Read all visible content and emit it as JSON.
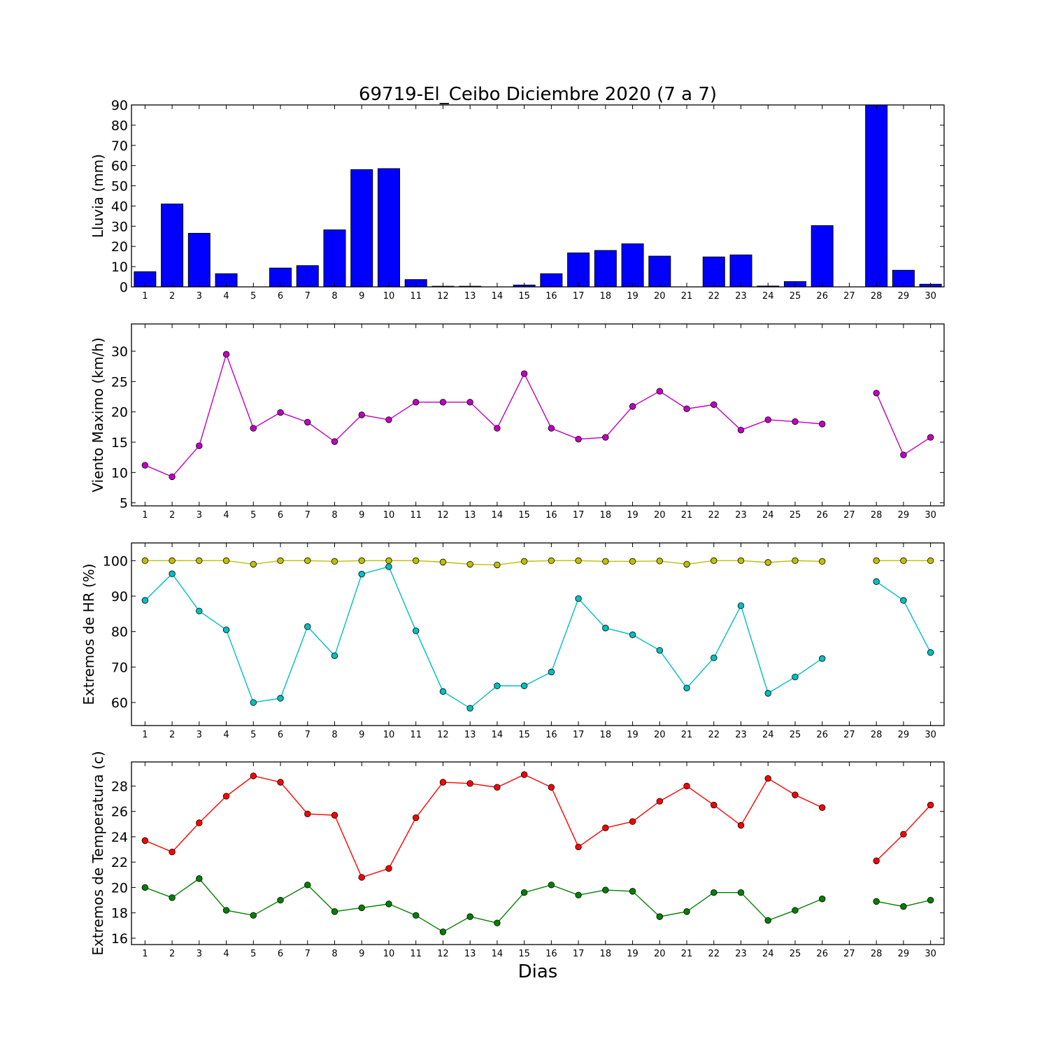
{
  "figure": {
    "title": "69719-El_Ceibo Diciembre 2020  (7 a 7)",
    "xlabel": "Dias"
  },
  "chart_data": [
    {
      "type": "bar",
      "ylabel": "Lluvia (mm)",
      "ylim": [
        0,
        90
      ],
      "yticks": [
        0,
        10,
        20,
        30,
        40,
        50,
        60,
        70,
        80,
        90
      ],
      "xlim": [
        0.5,
        30.5
      ],
      "xticks": [
        1,
        2,
        3,
        4,
        5,
        6,
        7,
        8,
        9,
        10,
        11,
        12,
        13,
        14,
        15,
        16,
        17,
        18,
        19,
        20,
        21,
        22,
        23,
        24,
        25,
        26,
        27,
        28,
        29,
        30
      ],
      "color": "#0000ff",
      "series": [
        {
          "name": "",
          "x": [
            1,
            2,
            3,
            4,
            5,
            6,
            7,
            8,
            9,
            10,
            11,
            12,
            13,
            14,
            15,
            16,
            17,
            18,
            19,
            20,
            21,
            22,
            23,
            24,
            25,
            26,
            27,
            28,
            29,
            30
          ],
          "values": [
            7.5,
            41,
            26.5,
            6.5,
            0,
            9.3,
            10.5,
            28.2,
            58,
            58.5,
            3.6,
            0.3,
            0.3,
            0,
            0.9,
            6.5,
            16.8,
            18,
            21.3,
            15.2,
            0,
            14.8,
            15.8,
            0.4,
            2.6,
            30.3,
            0,
            90,
            8.2,
            1.3
          ]
        }
      ]
    },
    {
      "type": "line",
      "ylabel": "Viento Maximo (km/h)",
      "ylim": [
        4.5,
        34.5
      ],
      "yticks": [
        5,
        10,
        15,
        20,
        25,
        30
      ],
      "xlim": [
        0.5,
        30.5
      ],
      "xticks": [
        1,
        2,
        3,
        4,
        5,
        6,
        7,
        8,
        9,
        10,
        11,
        12,
        13,
        14,
        15,
        16,
        17,
        18,
        19,
        20,
        21,
        22,
        23,
        24,
        25,
        26,
        27,
        28,
        29,
        30
      ],
      "series": [
        {
          "name": "",
          "color": "#bf00bf",
          "x": [
            1,
            2,
            3,
            4,
            5,
            6,
            7,
            8,
            9,
            10,
            11,
            12,
            13,
            14,
            15,
            16,
            17,
            18,
            19,
            20,
            21,
            22,
            23,
            24,
            25,
            26,
            27,
            28,
            29,
            30
          ],
          "values": [
            11.2,
            9.3,
            14.4,
            29.5,
            17.3,
            19.9,
            18.3,
            15.1,
            19.5,
            18.7,
            21.6,
            21.6,
            21.6,
            17.3,
            26.3,
            17.3,
            15.5,
            15.8,
            20.9,
            23.4,
            20.5,
            21.2,
            17,
            18.7,
            18.4,
            18,
            null,
            23.1,
            12.9,
            15.8
          ]
        }
      ]
    },
    {
      "type": "line",
      "ylabel": "Extremos de HR (%)",
      "ylim": [
        53.5,
        105
      ],
      "yticks": [
        60,
        70,
        80,
        90,
        100
      ],
      "xlim": [
        0.5,
        30.5
      ],
      "xticks": [
        1,
        2,
        3,
        4,
        5,
        6,
        7,
        8,
        9,
        10,
        11,
        12,
        13,
        14,
        15,
        16,
        17,
        18,
        19,
        20,
        21,
        22,
        23,
        24,
        25,
        26,
        27,
        28,
        29,
        30
      ],
      "series": [
        {
          "name": "",
          "color": "#bfbf00",
          "x": [
            1,
            2,
            3,
            4,
            5,
            6,
            7,
            8,
            9,
            10,
            11,
            12,
            13,
            14,
            15,
            16,
            17,
            18,
            19,
            20,
            21,
            22,
            23,
            24,
            25,
            26,
            27,
            28,
            29,
            30
          ],
          "values": [
            100,
            100,
            100,
            100,
            99,
            100,
            100,
            99.8,
            100,
            100,
            100,
            99.6,
            99,
            98.8,
            99.8,
            100,
            100,
            99.8,
            99.8,
            99.9,
            99,
            100,
            100,
            99.5,
            100,
            99.8,
            null,
            100,
            100,
            100
          ]
        },
        {
          "name": "",
          "color": "#00bfbf",
          "x": [
            1,
            2,
            3,
            4,
            5,
            6,
            7,
            8,
            9,
            10,
            11,
            12,
            13,
            14,
            15,
            16,
            17,
            18,
            19,
            20,
            21,
            22,
            23,
            24,
            25,
            26,
            27,
            28,
            29,
            30
          ],
          "values": [
            88.8,
            96.3,
            85.8,
            80.5,
            60,
            61.2,
            81.4,
            73.2,
            96.2,
            98.3,
            80.2,
            63.1,
            58.4,
            64.7,
            64.7,
            68.6,
            89.3,
            81,
            79.1,
            74.7,
            64.1,
            72.6,
            87.3,
            62.6,
            67.2,
            72.4,
            null,
            94.1,
            88.8,
            74.1
          ]
        }
      ]
    },
    {
      "type": "line",
      "ylabel": "Extremos de Temperatura (c)",
      "ylim": [
        15.5,
        29.9
      ],
      "yticks": [
        16,
        18,
        20,
        22,
        24,
        26,
        28
      ],
      "xlim": [
        0.5,
        30.5
      ],
      "xticks": [
        1,
        2,
        3,
        4,
        5,
        6,
        7,
        8,
        9,
        10,
        11,
        12,
        13,
        14,
        15,
        16,
        17,
        18,
        19,
        20,
        21,
        22,
        23,
        24,
        25,
        26,
        27,
        28,
        29,
        30
      ],
      "series": [
        {
          "name": "",
          "color": "#ff0000",
          "x": [
            1,
            2,
            3,
            4,
            5,
            6,
            7,
            8,
            9,
            10,
            11,
            12,
            13,
            14,
            15,
            16,
            17,
            18,
            19,
            20,
            21,
            22,
            23,
            24,
            25,
            26,
            27,
            28,
            29,
            30
          ],
          "values": [
            23.7,
            22.8,
            25.1,
            27.2,
            28.8,
            28.3,
            25.8,
            25.7,
            20.8,
            21.5,
            25.5,
            28.3,
            28.2,
            27.9,
            28.9,
            27.9,
            23.2,
            24.7,
            25.2,
            26.8,
            28,
            26.5,
            24.9,
            28.6,
            27.3,
            26.3,
            null,
            22.1,
            24.2,
            26.5
          ]
        },
        {
          "name": "",
          "color": "#008000",
          "x": [
            1,
            2,
            3,
            4,
            5,
            6,
            7,
            8,
            9,
            10,
            11,
            12,
            13,
            14,
            15,
            16,
            17,
            18,
            19,
            20,
            21,
            22,
            23,
            24,
            25,
            26,
            27,
            28,
            29,
            30
          ],
          "values": [
            20,
            19.2,
            20.7,
            18.2,
            17.8,
            19,
            20.2,
            18.1,
            18.4,
            18.7,
            17.8,
            16.5,
            17.7,
            17.2,
            19.6,
            20.2,
            19.4,
            19.8,
            19.7,
            17.7,
            18.1,
            19.6,
            19.6,
            17.4,
            18.2,
            19.1,
            null,
            18.9,
            18.5,
            19
          ]
        }
      ]
    }
  ]
}
